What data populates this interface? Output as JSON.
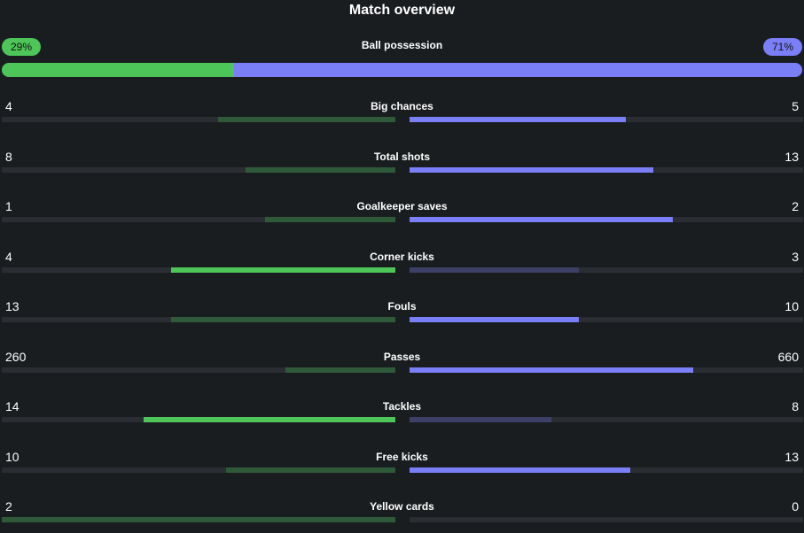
{
  "title": "Match overview",
  "possession": {
    "label": "Ball possession",
    "home_label": "29%",
    "away_label": "71%",
    "home_value": 29,
    "away_value": 71
  },
  "colors": {
    "home_strong": "#4dc558",
    "home_weak": "#2f5a3a",
    "away_strong": "#7b7ff7",
    "away_weak": "#3e3f66"
  },
  "stats": [
    {
      "label": "Big chances",
      "home": "4",
      "away": "5",
      "home_fill": 0.45,
      "away_fill": 0.55,
      "leader": "away"
    },
    {
      "label": "Total shots",
      "home": "8",
      "away": "13",
      "home_fill": 0.38,
      "away_fill": 0.62,
      "leader": "away"
    },
    {
      "label": "Goalkeeper saves",
      "home": "1",
      "away": "2",
      "home_fill": 0.33,
      "away_fill": 0.67,
      "leader": "away"
    },
    {
      "label": "Corner kicks",
      "home": "4",
      "away": "3",
      "home_fill": 0.57,
      "away_fill": 0.43,
      "leader": "home"
    },
    {
      "label": "Fouls",
      "home": "13",
      "away": "10",
      "home_fill": 0.57,
      "away_fill": 0.43,
      "leader": "away"
    },
    {
      "label": "Passes",
      "home": "260",
      "away": "660",
      "home_fill": 0.28,
      "away_fill": 0.72,
      "leader": "away"
    },
    {
      "label": "Tackles",
      "home": "14",
      "away": "8",
      "home_fill": 0.64,
      "away_fill": 0.36,
      "leader": "home"
    },
    {
      "label": "Free kicks",
      "home": "10",
      "away": "13",
      "home_fill": 0.43,
      "away_fill": 0.56,
      "leader": "away"
    },
    {
      "label": "Yellow cards",
      "home": "2",
      "away": "0",
      "home_fill": 1.0,
      "away_fill": 0.0,
      "leader": "away"
    }
  ]
}
